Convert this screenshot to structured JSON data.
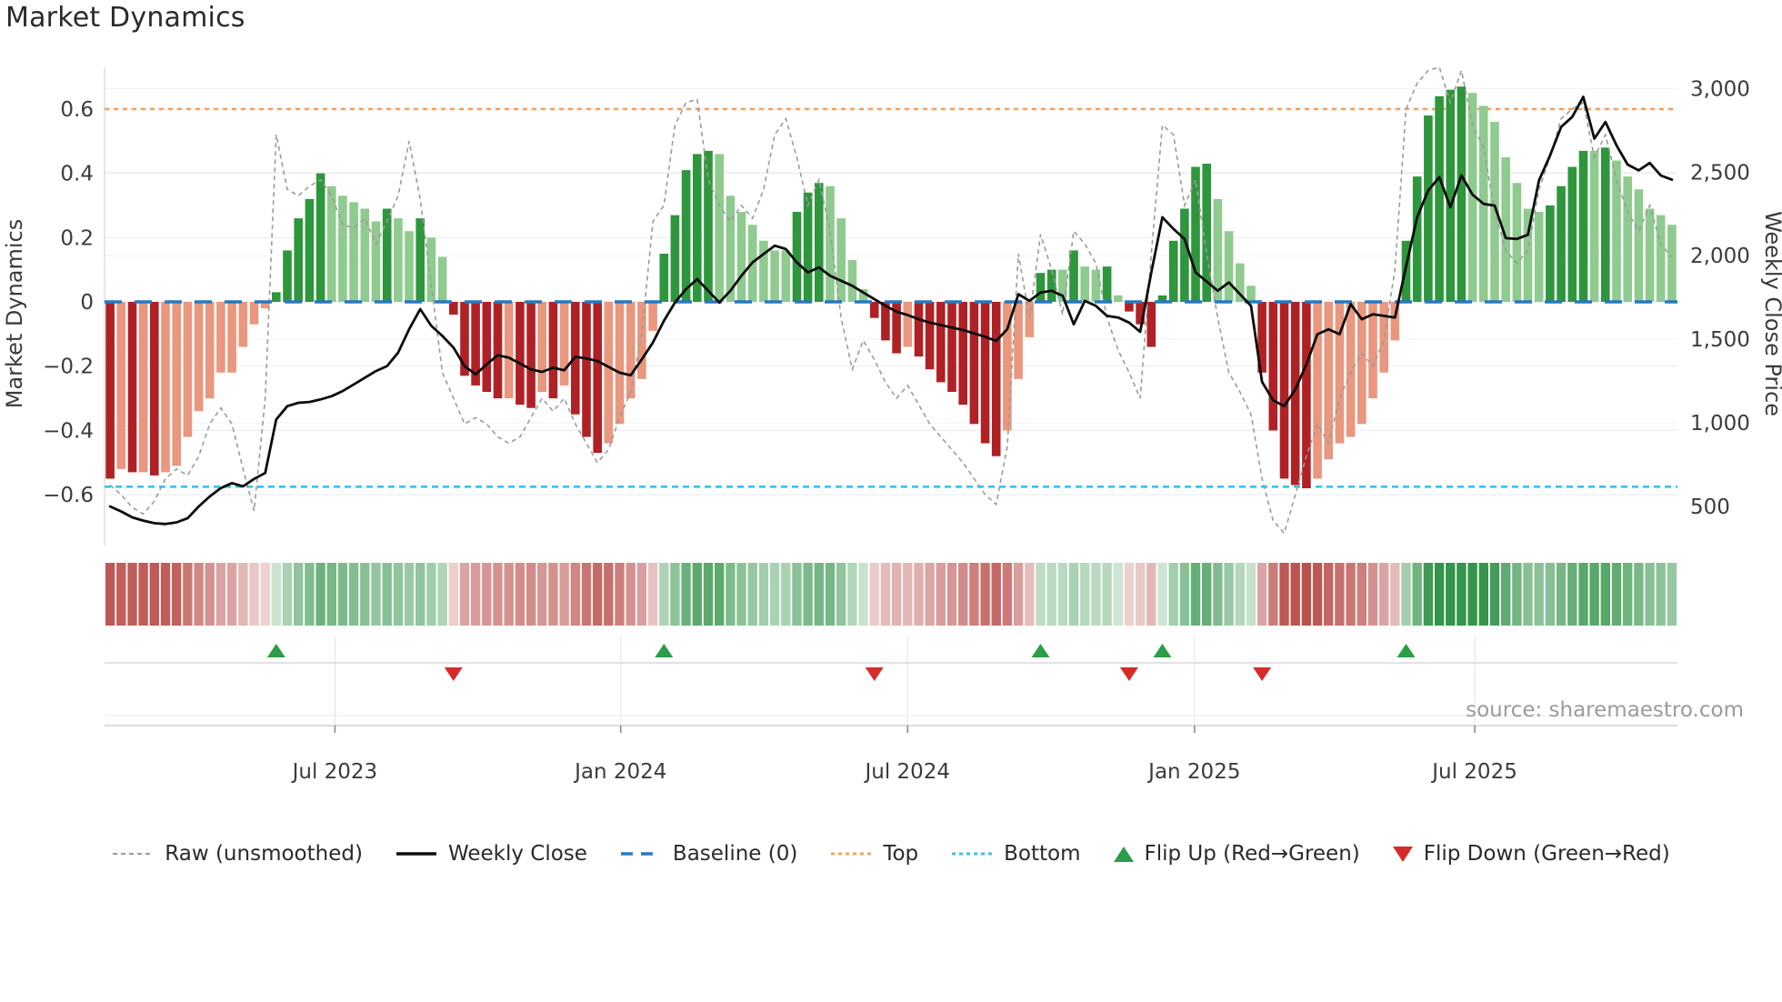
{
  "title": "Market Dynamics",
  "source": "source: sharemaestro.com",
  "left_axis": {
    "label": "Market Dynamics",
    "ticks": [
      0.6,
      0.4,
      0.2,
      0,
      -0.2,
      -0.4,
      -0.6
    ],
    "tick_labels": [
      "0.6",
      "0.4",
      "0.2",
      "0",
      "−0.2",
      "−0.4",
      "−0.6"
    ]
  },
  "right_axis": {
    "label": "Weekly Close Price",
    "ticks": [
      3000,
      2500,
      2000,
      1500,
      1000,
      500
    ],
    "tick_labels": [
      "3,000",
      "2,500",
      "2,000",
      "1,500",
      "1,000",
      "500"
    ]
  },
  "x_axis": {
    "tick_labels": [
      "Jul 2023",
      "Jan 2024",
      "Jul 2024",
      "Jan 2025",
      "Jul 2025"
    ],
    "tick_weeks": [
      20.3,
      46.1,
      72.0,
      97.9,
      123.2
    ]
  },
  "colors": {
    "bar_neg_strong": "#b02125",
    "bar_neg_soft": "#e9977e",
    "bar_pos_strong": "#2e963c",
    "bar_pos_soft": "#8fcb8f",
    "baseline": "#2878be",
    "top_line": "#f2a25e",
    "bottom_line": "#35c3ea",
    "raw_line": "#9b9b9b",
    "price_line": "#0d0d0d",
    "flip_up": "#2a9d48",
    "flip_down": "#d62b2b"
  },
  "legend": [
    {
      "label": "Raw (unsmoothed)",
      "type": "dash-gray"
    },
    {
      "label": "Weekly Close",
      "type": "solid-black"
    },
    {
      "label": "Baseline (0)",
      "type": "dash-blue"
    },
    {
      "label": "Top",
      "type": "dot-orange"
    },
    {
      "label": "Bottom",
      "type": "dot-cyan"
    },
    {
      "label": "Flip Up (Red→Green)",
      "type": "tri-up"
    },
    {
      "label": "Flip Down (Green→Red)",
      "type": "tri-down"
    }
  ],
  "chart_data": {
    "type": "combo",
    "description": "Weekly oscillator bars (left axis) + heatmap strip + flip markers, with weekly close price and raw unsmoothed line",
    "weeks": 142,
    "period": "Feb 2023 - Nov 2025",
    "baseline": 0,
    "top_threshold": 0.6,
    "bottom_threshold": -0.575,
    "left_range": [
      -0.73,
      0.74
    ],
    "right_range": [
      390,
      3050
    ],
    "oscillator": [
      -0.55,
      -0.52,
      -0.53,
      -0.53,
      -0.54,
      -0.53,
      -0.51,
      -0.42,
      -0.34,
      -0.3,
      -0.22,
      -0.22,
      -0.14,
      -0.07,
      -0.02,
      0.03,
      0.16,
      0.26,
      0.32,
      0.4,
      0.36,
      0.33,
      0.31,
      0.29,
      0.25,
      0.29,
      0.26,
      0.22,
      0.26,
      0.2,
      0.14,
      -0.04,
      -0.23,
      -0.26,
      -0.28,
      -0.3,
      -0.3,
      -0.32,
      -0.33,
      -0.28,
      -0.3,
      -0.26,
      -0.35,
      -0.42,
      -0.47,
      -0.44,
      -0.38,
      -0.3,
      -0.24,
      -0.09,
      0.15,
      0.27,
      0.41,
      0.46,
      0.47,
      0.46,
      0.33,
      0.28,
      0.24,
      0.19,
      0.16,
      0.16,
      0.28,
      0.34,
      0.37,
      0.36,
      0.26,
      0.13,
      0.04,
      -0.05,
      -0.12,
      -0.16,
      -0.14,
      -0.17,
      -0.21,
      -0.25,
      -0.28,
      -0.32,
      -0.38,
      -0.44,
      -0.48,
      -0.4,
      -0.24,
      -0.11,
      0.09,
      0.1,
      0.1,
      0.16,
      0.11,
      0.1,
      0.11,
      0.02,
      -0.03,
      -0.07,
      -0.14,
      0.02,
      0.19,
      0.29,
      0.42,
      0.43,
      0.32,
      0.22,
      0.12,
      0.05,
      -0.22,
      -0.4,
      -0.55,
      -0.57,
      -0.58,
      -0.55,
      -0.49,
      -0.44,
      -0.42,
      -0.38,
      -0.3,
      -0.22,
      -0.12,
      0.19,
      0.39,
      0.58,
      0.64,
      0.66,
      0.67,
      0.65,
      0.61,
      0.56,
      0.45,
      0.37,
      0.29,
      0.28,
      0.3,
      0.36,
      0.42,
      0.47,
      0.47,
      0.48,
      0.44,
      0.39,
      0.35,
      0.29,
      0.27,
      0.24
    ],
    "raw": [
      -0.57,
      -0.6,
      -0.64,
      -0.66,
      -0.62,
      -0.55,
      -0.52,
      -0.54,
      -0.48,
      -0.38,
      -0.33,
      -0.38,
      -0.52,
      -0.65,
      -0.3,
      0.52,
      0.35,
      0.33,
      0.36,
      0.38,
      0.33,
      0.24,
      0.23,
      0.26,
      0.18,
      0.25,
      0.33,
      0.5,
      0.32,
      0.05,
      -0.22,
      -0.3,
      -0.38,
      -0.36,
      -0.38,
      -0.42,
      -0.44,
      -0.42,
      -0.36,
      -0.3,
      -0.34,
      -0.3,
      -0.38,
      -0.44,
      -0.5,
      -0.46,
      -0.36,
      -0.28,
      -0.1,
      0.25,
      0.3,
      0.55,
      0.62,
      0.63,
      0.38,
      0.3,
      0.25,
      0.3,
      0.26,
      0.35,
      0.52,
      0.57,
      0.45,
      0.3,
      0.38,
      0.22,
      -0.05,
      -0.21,
      -0.12,
      -0.18,
      -0.25,
      -0.3,
      -0.26,
      -0.32,
      -0.38,
      -0.42,
      -0.46,
      -0.5,
      -0.55,
      -0.6,
      -0.63,
      -0.45,
      0.15,
      -0.05,
      0.21,
      0.1,
      -0.04,
      0.22,
      0.18,
      0.12,
      -0.05,
      -0.15,
      -0.22,
      -0.3,
      0.15,
      0.55,
      0.52,
      0.3,
      0.38,
      0.15,
      -0.05,
      -0.22,
      -0.28,
      -0.35,
      -0.55,
      -0.68,
      -0.72,
      -0.6,
      -0.48,
      -0.38,
      -0.44,
      -0.3,
      -0.22,
      -0.16,
      -0.2,
      -0.12,
      0.1,
      0.6,
      0.68,
      0.72,
      0.73,
      0.62,
      0.72,
      0.55,
      0.48,
      0.28,
      0.16,
      0.12,
      0.16,
      0.35,
      0.45,
      0.57,
      0.6,
      0.62,
      0.45,
      0.52,
      0.38,
      0.28,
      0.22,
      0.3,
      0.18,
      0.14
    ],
    "price": [
      500,
      470,
      435,
      415,
      400,
      395,
      405,
      430,
      500,
      560,
      610,
      640,
      620,
      665,
      700,
      1020,
      1100,
      1120,
      1125,
      1140,
      1160,
      1190,
      1230,
      1270,
      1310,
      1340,
      1420,
      1560,
      1680,
      1580,
      1520,
      1450,
      1340,
      1290,
      1350,
      1405,
      1390,
      1355,
      1320,
      1305,
      1330,
      1315,
      1395,
      1385,
      1370,
      1335,
      1300,
      1285,
      1380,
      1480,
      1610,
      1720,
      1800,
      1860,
      1790,
      1720,
      1790,
      1880,
      1960,
      2010,
      2060,
      2040,
      1960,
      1900,
      1930,
      1880,
      1850,
      1820,
      1780,
      1740,
      1700,
      1665,
      1645,
      1620,
      1600,
      1585,
      1570,
      1555,
      1535,
      1515,
      1490,
      1560,
      1770,
      1730,
      1780,
      1790,
      1760,
      1590,
      1730,
      1700,
      1640,
      1630,
      1600,
      1545,
      1900,
      2230,
      2160,
      2100,
      1900,
      1845,
      1790,
      1840,
      1770,
      1700,
      1245,
      1135,
      1100,
      1200,
      1350,
      1530,
      1560,
      1530,
      1710,
      1620,
      1650,
      1640,
      1630,
      1935,
      2230,
      2390,
      2470,
      2290,
      2480,
      2365,
      2310,
      2300,
      2105,
      2100,
      2125,
      2450,
      2600,
      2770,
      2830,
      2950,
      2700,
      2800,
      2660,
      2545,
      2510,
      2555,
      2480,
      2455
    ],
    "flip_up_weeks": [
      15,
      50,
      84,
      95,
      117
    ],
    "flip_down_weeks": [
      31,
      69,
      92,
      104
    ]
  }
}
